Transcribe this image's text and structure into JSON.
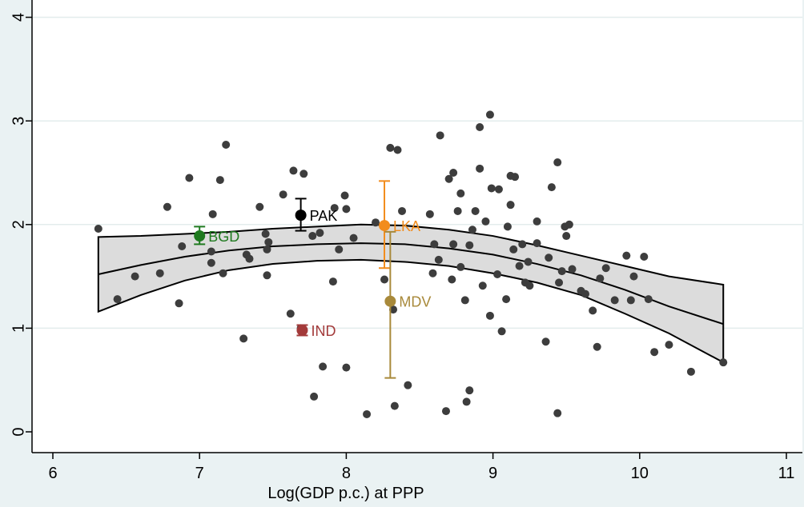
{
  "chart_data": {
    "type": "scatter",
    "title": "",
    "xlabel": "Log(GDP p.c.) at PPP",
    "ylabel": "",
    "xlim": [
      6,
      11
    ],
    "ylim": [
      0,
      4
    ],
    "xticks": [
      6,
      7,
      8,
      9,
      10,
      11
    ],
    "yticks": [
      0,
      1,
      2,
      3,
      4
    ],
    "grid": "horizontal",
    "legend": "none",
    "colors": {
      "background": "#eaf2f3",
      "plot_area": "#ffffff",
      "points": "#3d3d3d",
      "band_fill": "#dcdcdc",
      "line": "#000000",
      "grid": "#e3ecec"
    },
    "scatter_points": [
      [
        6.31,
        1.96
      ],
      [
        6.44,
        1.28
      ],
      [
        6.56,
        1.5
      ],
      [
        6.73,
        1.53
      ],
      [
        6.78,
        2.17
      ],
      [
        6.86,
        1.24
      ],
      [
        6.88,
        1.79
      ],
      [
        6.93,
        2.45
      ],
      [
        7.08,
        1.74
      ],
      [
        7.08,
        1.63
      ],
      [
        7.09,
        2.1
      ],
      [
        7.14,
        2.43
      ],
      [
        7.16,
        1.53
      ],
      [
        7.18,
        2.77
      ],
      [
        7.3,
        0.9
      ],
      [
        7.32,
        1.71
      ],
      [
        7.34,
        1.67
      ],
      [
        7.41,
        2.17
      ],
      [
        7.45,
        1.91
      ],
      [
        7.46,
        1.76
      ],
      [
        7.46,
        1.51
      ],
      [
        7.47,
        1.83
      ],
      [
        7.57,
        2.29
      ],
      [
        7.62,
        1.14
      ],
      [
        7.64,
        2.52
      ],
      [
        7.69,
        1.0
      ],
      [
        7.71,
        2.49
      ],
      [
        7.77,
        1.89
      ],
      [
        7.78,
        0.34
      ],
      [
        7.82,
        1.92
      ],
      [
        7.84,
        0.63
      ],
      [
        7.91,
        1.45
      ],
      [
        7.92,
        2.16
      ],
      [
        7.95,
        1.76
      ],
      [
        7.99,
        2.28
      ],
      [
        8.0,
        0.62
      ],
      [
        8.0,
        2.15
      ],
      [
        8.05,
        1.87
      ],
      [
        8.2,
        2.02
      ],
      [
        8.14,
        0.17
      ],
      [
        8.26,
        1.47
      ],
      [
        8.3,
        2.74
      ],
      [
        8.32,
        1.18
      ],
      [
        8.33,
        0.25
      ],
      [
        8.35,
        2.72
      ],
      [
        8.38,
        2.13
      ],
      [
        8.42,
        0.45
      ],
      [
        8.57,
        2.1
      ],
      [
        8.59,
        1.53
      ],
      [
        8.6,
        1.81
      ],
      [
        8.63,
        1.66
      ],
      [
        8.64,
        2.86
      ],
      [
        8.68,
        0.2
      ],
      [
        8.7,
        2.44
      ],
      [
        8.72,
        1.47
      ],
      [
        8.73,
        1.81
      ],
      [
        8.73,
        2.5
      ],
      [
        8.76,
        2.13
      ],
      [
        8.78,
        1.59
      ],
      [
        8.78,
        2.3
      ],
      [
        8.81,
        1.27
      ],
      [
        8.82,
        0.29
      ],
      [
        8.84,
        0.4
      ],
      [
        8.84,
        1.8
      ],
      [
        8.86,
        1.95
      ],
      [
        8.88,
        2.13
      ],
      [
        8.91,
        2.94
      ],
      [
        8.91,
        2.54
      ],
      [
        8.93,
        1.41
      ],
      [
        8.95,
        2.03
      ],
      [
        8.98,
        3.06
      ],
      [
        8.98,
        1.12
      ],
      [
        8.99,
        2.35
      ],
      [
        9.03,
        1.52
      ],
      [
        9.04,
        2.34
      ],
      [
        9.06,
        0.97
      ],
      [
        9.09,
        1.28
      ],
      [
        9.1,
        1.98
      ],
      [
        9.12,
        2.19
      ],
      [
        9.12,
        2.47
      ],
      [
        9.14,
        1.76
      ],
      [
        9.15,
        2.46
      ],
      [
        9.18,
        1.6
      ],
      [
        9.2,
        1.81
      ],
      [
        9.22,
        1.44
      ],
      [
        9.24,
        1.64
      ],
      [
        9.25,
        1.41
      ],
      [
        9.3,
        2.03
      ],
      [
        9.3,
        1.82
      ],
      [
        9.36,
        0.87
      ],
      [
        9.38,
        1.68
      ],
      [
        9.4,
        2.36
      ],
      [
        9.44,
        2.6
      ],
      [
        9.44,
        0.18
      ],
      [
        9.45,
        1.44
      ],
      [
        9.47,
        1.55
      ],
      [
        9.49,
        1.98
      ],
      [
        9.5,
        1.89
      ],
      [
        9.52,
        2.0
      ],
      [
        9.54,
        1.57
      ],
      [
        9.6,
        1.36
      ],
      [
        9.63,
        1.33
      ],
      [
        9.68,
        1.17
      ],
      [
        9.71,
        0.82
      ],
      [
        9.73,
        1.48
      ],
      [
        9.77,
        1.58
      ],
      [
        9.83,
        1.27
      ],
      [
        9.91,
        1.7
      ],
      [
        9.94,
        1.27
      ],
      [
        9.96,
        1.5
      ],
      [
        10.03,
        1.69
      ],
      [
        10.06,
        1.28
      ],
      [
        10.1,
        0.77
      ],
      [
        10.2,
        0.84
      ],
      [
        10.35,
        0.58
      ],
      [
        10.57,
        0.67
      ]
    ],
    "fit_line": {
      "x": [
        6.31,
        6.6,
        6.9,
        7.2,
        7.5,
        7.8,
        8.1,
        8.4,
        8.7,
        9.0,
        9.3,
        9.6,
        9.9,
        10.2,
        10.57
      ],
      "y": [
        1.52,
        1.61,
        1.69,
        1.75,
        1.79,
        1.81,
        1.82,
        1.81,
        1.77,
        1.71,
        1.62,
        1.51,
        1.37,
        1.21,
        1.04
      ],
      "lower": [
        1.16,
        1.32,
        1.46,
        1.56,
        1.62,
        1.65,
        1.66,
        1.64,
        1.6,
        1.53,
        1.44,
        1.32,
        1.14,
        0.95,
        0.67
      ],
      "upper": [
        1.88,
        1.89,
        1.91,
        1.93,
        1.96,
        1.98,
        2.0,
        1.99,
        1.95,
        1.89,
        1.8,
        1.7,
        1.6,
        1.5,
        1.42
      ]
    },
    "highlighted": [
      {
        "label": "BGD",
        "x": 7.0,
        "y": 1.89,
        "ci": [
          1.81,
          1.98
        ],
        "color": "#1f7a1f"
      },
      {
        "label": "PAK",
        "x": 7.69,
        "y": 2.09,
        "ci": [
          1.94,
          2.25
        ],
        "color": "#000000"
      },
      {
        "label": "IND",
        "x": 7.7,
        "y": 0.98,
        "ci": [
          0.93,
          1.03
        ],
        "color": "#a33a3a"
      },
      {
        "label": "LKA",
        "x": 8.26,
        "y": 1.99,
        "ci": [
          1.58,
          2.42
        ],
        "color": "#f28c1c"
      },
      {
        "label": "MDV",
        "x": 8.3,
        "y": 1.26,
        "ci": [
          0.52,
          1.93
        ],
        "color": "#a8893a"
      }
    ]
  }
}
